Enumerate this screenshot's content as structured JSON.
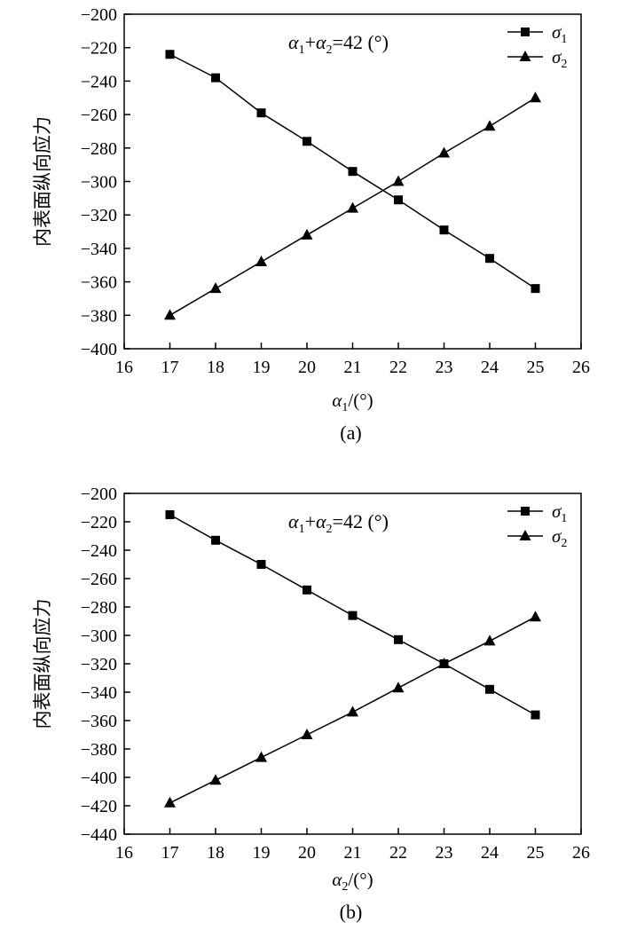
{
  "chart_data": [
    {
      "type": "line",
      "panel_label": "(a)",
      "annotation": {
        "lhs_a": "α",
        "sub1": "1",
        "plus": "+",
        "lhs_b": "α",
        "sub2": "2",
        "rhs": "=42 (°)"
      },
      "ylabel": "内表面纵向应力",
      "xlabel": {
        "symbol": "α",
        "sub": "1",
        "unit": "/(°)"
      },
      "xlim": [
        16,
        26
      ],
      "ylim": [
        -400,
        -200
      ],
      "xticks": [
        16,
        17,
        18,
        19,
        20,
        21,
        22,
        23,
        24,
        25,
        26
      ],
      "yticks": [
        -200,
        -220,
        -240,
        -260,
        -280,
        -300,
        -320,
        -340,
        -360,
        -380,
        -400
      ],
      "x": [
        17,
        18,
        19,
        20,
        21,
        22,
        23,
        24,
        25
      ],
      "series": [
        {
          "name": "σ",
          "sub": "1",
          "marker": "square",
          "values": [
            -224,
            -238,
            -259,
            -276,
            -294,
            -311,
            -329,
            -346,
            -364
          ]
        },
        {
          "name": "σ",
          "sub": "2",
          "marker": "triangle",
          "values": [
            -380,
            -364,
            -348,
            -332,
            -316,
            -300,
            -283,
            -267,
            -250
          ]
        }
      ],
      "legend_position": "top-right",
      "grid": false
    },
    {
      "type": "line",
      "panel_label": "(b)",
      "annotation": {
        "lhs_a": "α",
        "sub1": "1",
        "plus": "+",
        "lhs_b": "α",
        "sub2": "2",
        "rhs": "=42 (°)"
      },
      "ylabel": "内表面纵向应力",
      "xlabel": {
        "symbol": "α",
        "sub": "2",
        "unit": "/(°)"
      },
      "xlim": [
        16,
        26
      ],
      "ylim": [
        -440,
        -200
      ],
      "xticks": [
        16,
        17,
        18,
        19,
        20,
        21,
        22,
        23,
        24,
        25,
        26
      ],
      "yticks": [
        -200,
        -220,
        -240,
        -260,
        -280,
        -300,
        -320,
        -340,
        -360,
        -380,
        -400,
        -420,
        -440
      ],
      "x": [
        17,
        18,
        19,
        20,
        21,
        22,
        23,
        24,
        25
      ],
      "series": [
        {
          "name": "σ",
          "sub": "1",
          "marker": "square",
          "values": [
            -215,
            -233,
            -250,
            -268,
            -286,
            -303,
            -320,
            -338,
            -356
          ]
        },
        {
          "name": "σ",
          "sub": "2",
          "marker": "triangle",
          "values": [
            -418,
            -402,
            -386,
            -370,
            -354,
            -337,
            -320,
            -304,
            -287
          ]
        }
      ],
      "legend_position": "top-right",
      "grid": false
    }
  ]
}
